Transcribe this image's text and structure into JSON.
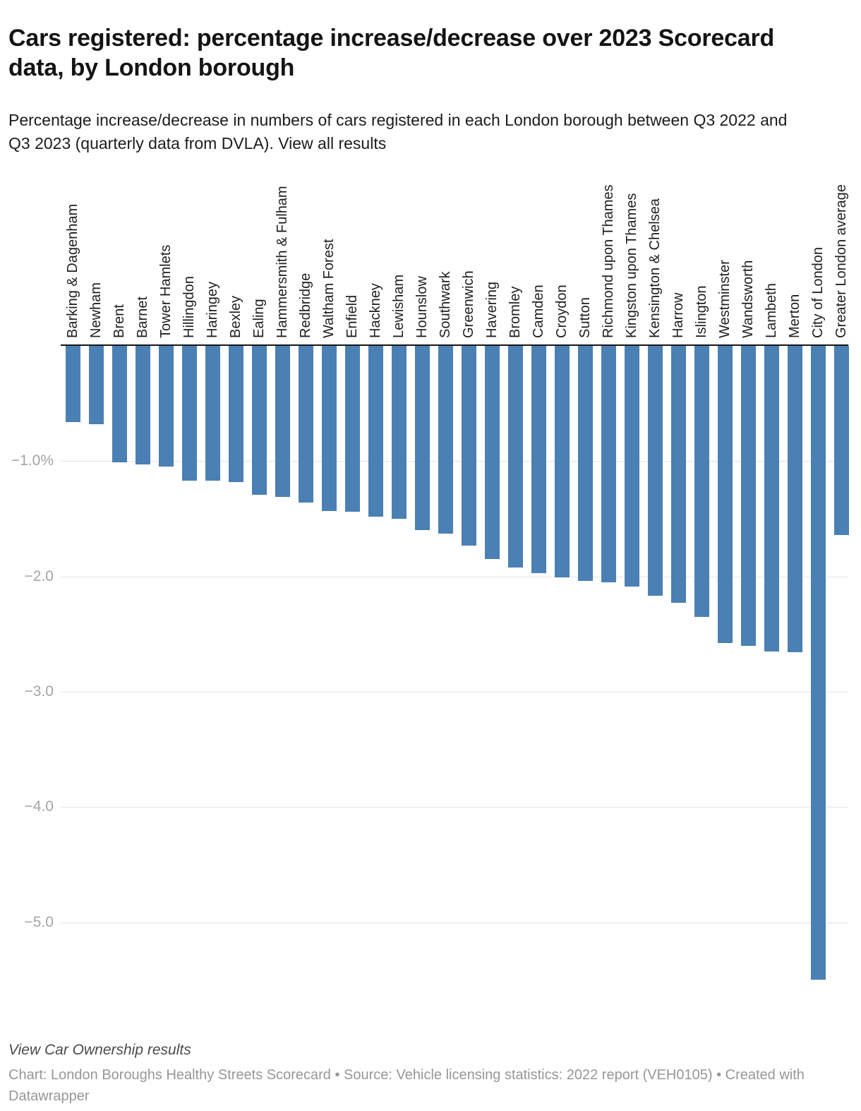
{
  "header": {
    "title": "Cars registered: percentage increase/decrease over 2023 Scorecard data, by London borough",
    "description": "Percentage increase/decrease in numbers of cars registered in each London borough between Q3 2022 and Q3 2023 (quarterly data from DVLA).",
    "description_link": "View all results"
  },
  "chart_data": {
    "type": "bar",
    "title": "Cars registered: percentage increase/decrease over 2023 Scorecard data, by London borough",
    "subtitle": "Percentage increase/decrease in numbers of cars registered in each London borough between Q3 2022 and Q3 2023 (quarterly data from DVLA).",
    "value_suffix": "%",
    "bar_color": "#4a80b4",
    "grid": true,
    "legend": "none",
    "ylim": [
      -5.6,
      0
    ],
    "yticks": [
      {
        "value": -1.0,
        "label": "−1.0%"
      },
      {
        "value": -2.0,
        "label": "−2.0"
      },
      {
        "value": -3.0,
        "label": "−3.0"
      },
      {
        "value": -4.0,
        "label": "−4.0"
      },
      {
        "value": -5.0,
        "label": "−5.0"
      }
    ],
    "categories": [
      "Barking & Dagenham",
      "Newham",
      "Brent",
      "Barnet",
      "Tower Hamlets",
      "Hillingdon",
      "Haringey",
      "Bexley",
      "Ealing",
      "Hammersmith & Fulham",
      "Redbridge",
      "Waltham Forest",
      "Enfield",
      "Hackney",
      "Lewisham",
      "Hounslow",
      "Southwark",
      "Greenwich",
      "Havering",
      "Bromley",
      "Camden",
      "Croydon",
      "Sutton",
      "Richmond upon Thames",
      "Kingston upon Thames",
      "Kensington & Chelsea",
      "Harrow",
      "Islington",
      "Westminster",
      "Wandsworth",
      "Lambeth",
      "Merton",
      "City of London",
      "Greater London average"
    ],
    "values": [
      -0.66,
      -0.68,
      -1.01,
      -1.03,
      -1.05,
      -1.17,
      -1.17,
      -1.18,
      -1.29,
      -1.31,
      -1.36,
      -1.43,
      -1.44,
      -1.48,
      -1.5,
      -1.6,
      -1.63,
      -1.73,
      -1.85,
      -1.92,
      -1.97,
      -2.01,
      -2.04,
      -2.05,
      -2.09,
      -2.17,
      -2.23,
      -2.35,
      -2.58,
      -2.6,
      -2.65,
      -2.66,
      -5.5,
      -1.64
    ]
  },
  "footer": {
    "link": "View Car Ownership results",
    "caption": "Chart: London Boroughs Healthy Streets Scorecard • Source: Vehicle licensing statistics: 2022 report (VEH0105) • Created with Datawrapper"
  }
}
